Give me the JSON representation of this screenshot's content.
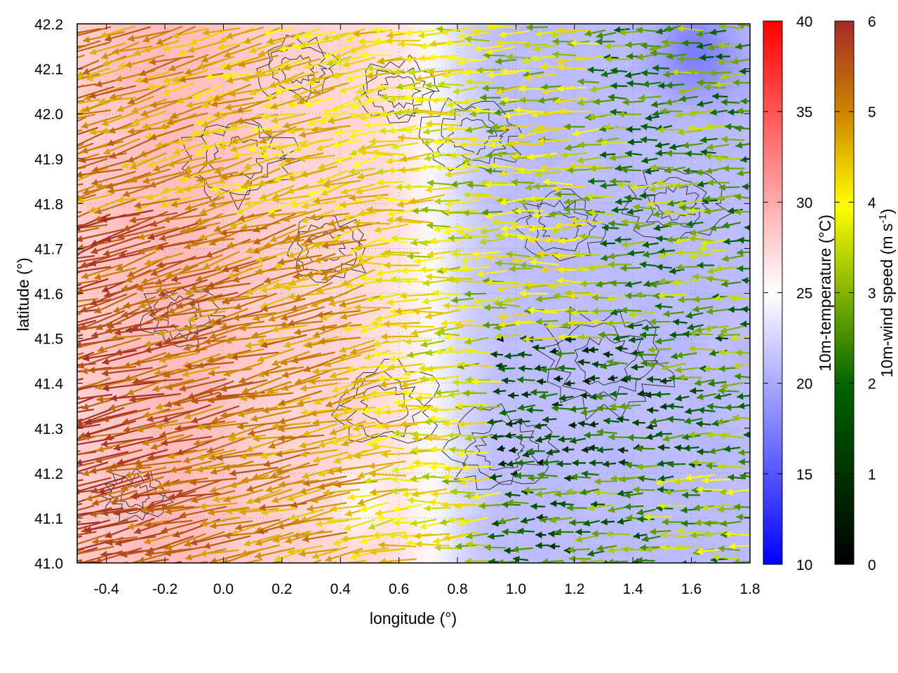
{
  "chart_data": {
    "type": "heatmap",
    "xlabel": "longitude (°)",
    "ylabel": "latitude (°)",
    "xlim": [
      -0.5,
      1.8
    ],
    "ylim": [
      41.0,
      42.2
    ],
    "x_ticks": [
      "-0.4",
      "-0.2",
      "0.0",
      "0.2",
      "0.4",
      "0.6",
      "0.8",
      "1.0",
      "1.2",
      "1.4",
      "1.6",
      "1.8"
    ],
    "y_ticks": [
      "41.0",
      "41.1",
      "41.2",
      "41.3",
      "41.4",
      "41.5",
      "41.6",
      "41.7",
      "41.8",
      "41.9",
      "42.0",
      "42.1",
      "42.2"
    ],
    "grid": "dotted",
    "layers": {
      "temperature": {
        "label": "10m-temperature (°C)",
        "range": [
          10,
          40
        ],
        "ticks": [
          "10",
          "15",
          "20",
          "25",
          "30",
          "35",
          "40"
        ],
        "colors": [
          "#0000ff",
          "#ffffff",
          "#ff0000"
        ],
        "pattern": "warm (about 27-29 °C) west of 0.6°E, cool (about 19-22 °C) east of 0.8°E and in the northeast corner"
      },
      "wind": {
        "label": "10m-wind speed (m s-1)",
        "label_main": "10m-wind speed (m s",
        "label_sup": "-1",
        "label_tail": ")",
        "range": [
          0,
          6
        ],
        "ticks": [
          "0",
          "1",
          "2",
          "3",
          "4",
          "5",
          "6"
        ],
        "colors": [
          "#000000",
          "#006400",
          "#ffff00",
          "#cd8500",
          "#a52a2a"
        ],
        "pattern": "easterly wind vectors: strong (5-6 m/s) from the west side toward the WNW in the south-west, weak (0-2 m/s) in the south-east, moderate (2-4 m/s) elsewhere"
      },
      "contours": {
        "color": "#333333",
        "description": "terrain elevation contour lines"
      }
    }
  }
}
